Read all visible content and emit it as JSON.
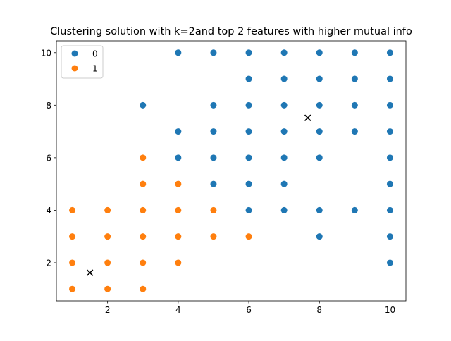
{
  "chart_data": {
    "type": "scatter",
    "title": "Clustering solution with k=2and top 2 features with higher mutual info",
    "xlabel": "",
    "ylabel": "",
    "xlim": [
      0.55,
      10.45
    ],
    "ylim": [
      0.55,
      10.45
    ],
    "xticks": [
      2,
      4,
      6,
      8,
      10
    ],
    "yticks": [
      2,
      4,
      6,
      8,
      10
    ],
    "grid": false,
    "legend_position": "top-left",
    "series": [
      {
        "name": "0",
        "color": "#1f77b4",
        "points": [
          [
            3,
            8
          ],
          [
            4,
            10
          ],
          [
            4,
            7
          ],
          [
            4,
            6
          ],
          [
            5,
            10
          ],
          [
            5,
            8
          ],
          [
            5,
            7
          ],
          [
            5,
            6
          ],
          [
            5,
            5
          ],
          [
            6,
            10
          ],
          [
            6,
            9
          ],
          [
            6,
            8
          ],
          [
            6,
            7
          ],
          [
            6,
            6
          ],
          [
            6,
            5
          ],
          [
            6,
            4
          ],
          [
            7,
            10
          ],
          [
            7,
            9
          ],
          [
            7,
            8
          ],
          [
            7,
            7
          ],
          [
            7,
            6
          ],
          [
            7,
            5
          ],
          [
            7,
            4
          ],
          [
            8,
            10
          ],
          [
            8,
            9
          ],
          [
            8,
            8
          ],
          [
            8,
            7
          ],
          [
            8,
            6
          ],
          [
            8,
            4
          ],
          [
            8,
            3
          ],
          [
            9,
            10
          ],
          [
            9,
            9
          ],
          [
            9,
            8
          ],
          [
            9,
            7
          ],
          [
            9,
            4
          ],
          [
            10,
            10
          ],
          [
            10,
            9
          ],
          [
            10,
            8
          ],
          [
            10,
            7
          ],
          [
            10,
            6
          ],
          [
            10,
            5
          ],
          [
            10,
            4
          ],
          [
            10,
            3
          ],
          [
            10,
            2
          ]
        ]
      },
      {
        "name": "1",
        "color": "#ff7f0e",
        "points": [
          [
            1,
            4
          ],
          [
            1,
            3
          ],
          [
            1,
            2
          ],
          [
            1,
            1
          ],
          [
            2,
            4
          ],
          [
            2,
            3
          ],
          [
            2,
            2
          ],
          [
            2,
            1
          ],
          [
            3,
            6
          ],
          [
            3,
            5
          ],
          [
            3,
            4
          ],
          [
            3,
            3
          ],
          [
            3,
            2
          ],
          [
            3,
            1
          ],
          [
            4,
            5
          ],
          [
            4,
            4
          ],
          [
            4,
            3
          ],
          [
            4,
            2
          ],
          [
            5,
            4
          ],
          [
            5,
            3
          ],
          [
            6,
            3
          ]
        ]
      }
    ],
    "centroids": [
      {
        "name": "centroid-0",
        "x": 7.67,
        "y": 7.52
      },
      {
        "name": "centroid-1",
        "x": 1.5,
        "y": 1.62
      }
    ]
  }
}
